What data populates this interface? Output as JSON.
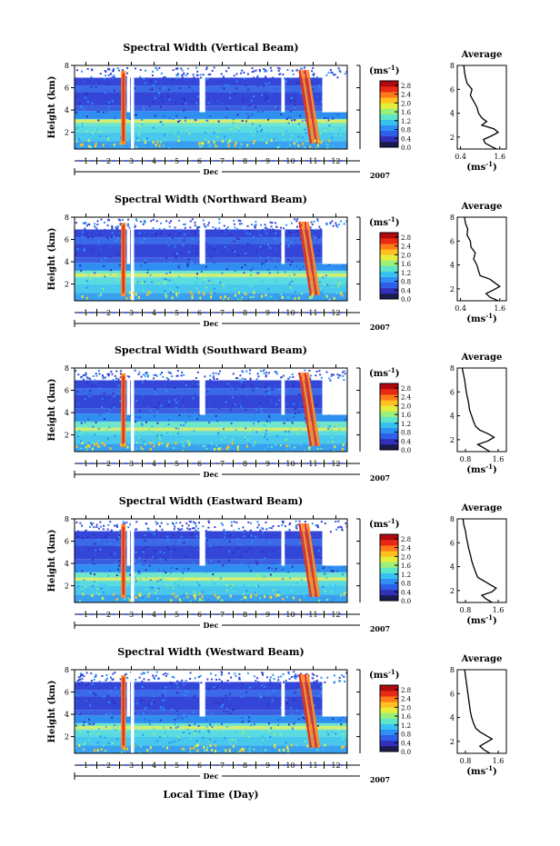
{
  "chart_data": {
    "type": "heatmap",
    "xlabel": "Local Time (Day)",
    "month_label": "Dec",
    "year_label": "2007",
    "x_tick_labels": [
      "1",
      "2",
      "3",
      "4",
      "5",
      "6",
      "7",
      "8",
      "9",
      "10",
      "11",
      "12"
    ],
    "colorbar": {
      "unit_label": "(ms",
      "unit_sup": "-1",
      "unit_close": ")",
      "tick_labels": [
        "0.0",
        "0.4",
        "0.8",
        "1.2",
        "1.6",
        "2.0",
        "2.4",
        "2.8"
      ],
      "range": [
        0,
        3.0
      ],
      "colors": [
        "#1b1b4d",
        "#3030b8",
        "#2f5ee8",
        "#2f8ff5",
        "#36c2f0",
        "#5ee6c8",
        "#9af07a",
        "#e6ee3c",
        "#ffc020",
        "#ff7a18",
        "#e82a14",
        "#b00a10"
      ]
    },
    "heatmap_dominant_colors": {
      "background_gaps": "#ffffff",
      "upper_levels": "#3346d8",
      "lower_levels": "#53d8e8",
      "enhanced_band": "#f7ef55",
      "peak_events": "#e8321e"
    },
    "panels": [
      {
        "title": "Spectral Width (Vertical Beam)",
        "ylabel": "Height (km)",
        "y_tick_labels": [
          "2",
          "4",
          "6",
          "8"
        ],
        "ylim": [
          0.5,
          8
        ],
        "xlim": [
          0.5,
          12.5
        ],
        "bright_band_height": 3.0,
        "profile": {
          "title": "Average",
          "xlabel_text": "(ms",
          "xlabel_sup": "-1",
          "xlabel_close": ")",
          "x_tick_labels": [
            "0.4",
            "1.6"
          ],
          "x_ticks": [
            0.4,
            1.6
          ],
          "xlim": [
            0.3,
            1.8
          ],
          "y_tick_labels": [
            "2",
            "4",
            "6",
            "8"
          ],
          "ylim": [
            1,
            8
          ],
          "height": [
            1.0,
            1.2,
            1.5,
            1.8,
            2.1,
            2.4,
            2.7,
            3.0,
            3.3,
            3.6,
            4.0,
            4.5,
            5.0,
            5.5,
            6.0,
            6.5,
            7.0,
            7.5,
            8.0
          ],
          "width": [
            1.5,
            1.35,
            1.15,
            1.1,
            1.35,
            1.55,
            1.42,
            1.05,
            1.2,
            1.05,
            0.95,
            0.9,
            0.8,
            0.7,
            0.75,
            0.6,
            0.55,
            0.52,
            0.5
          ]
        }
      },
      {
        "title": "Spectral Width (Northward Beam)",
        "ylabel": "Height (km)",
        "y_tick_labels": [
          "2",
          "4",
          "6",
          "8"
        ],
        "ylim": [
          0.5,
          8
        ],
        "xlim": [
          0.5,
          12.5
        ],
        "bright_band_height": 2.8,
        "profile": {
          "title": "Average",
          "xlabel_text": "(ms",
          "xlabel_sup": "-1",
          "xlabel_close": ")",
          "x_tick_labels": [
            "0.4",
            "1.6"
          ],
          "x_ticks": [
            0.4,
            1.6
          ],
          "xlim": [
            0.3,
            1.8
          ],
          "y_tick_labels": [
            "2",
            "4",
            "6",
            "8"
          ],
          "ylim": [
            1,
            8
          ],
          "height": [
            1.0,
            1.3,
            1.6,
            1.9,
            2.2,
            2.5,
            2.8,
            3.1,
            3.5,
            4.0,
            4.5,
            5.0,
            5.5,
            6.0,
            6.5,
            7.0,
            7.5,
            8.0
          ],
          "width": [
            1.55,
            1.3,
            1.18,
            1.4,
            1.6,
            1.45,
            1.3,
            1.0,
            0.95,
            0.9,
            0.8,
            0.85,
            0.72,
            0.7,
            0.6,
            0.62,
            0.55,
            0.52
          ]
        }
      },
      {
        "title": "Spectral Width (Southward Beam)",
        "ylabel": "Height (km)",
        "y_tick_labels": [
          "2",
          "4",
          "6",
          "8"
        ],
        "ylim": [
          0.5,
          8
        ],
        "xlim": [
          0.5,
          12.5
        ],
        "bright_band_height": 2.5,
        "profile": {
          "title": "Average",
          "xlabel_text": "(ms",
          "xlabel_sup": "-1",
          "xlabel_close": ")",
          "x_tick_labels": [
            "0.8",
            "1.6"
          ],
          "x_ticks": [
            0.8,
            1.6
          ],
          "xlim": [
            0.6,
            1.8
          ],
          "y_tick_labels": [
            "2",
            "4",
            "6",
            "8"
          ],
          "ylim": [
            1,
            8
          ],
          "height": [
            1.0,
            1.3,
            1.6,
            1.9,
            2.2,
            2.5,
            2.8,
            3.1,
            3.5,
            4.0,
            4.5,
            5.0,
            5.5,
            6.0,
            6.5,
            7.0,
            7.5,
            8.0
          ],
          "width": [
            1.4,
            1.25,
            1.1,
            1.35,
            1.5,
            1.35,
            1.15,
            1.05,
            1.0,
            0.95,
            0.9,
            0.88,
            0.85,
            0.82,
            0.8,
            0.78,
            0.75,
            0.72
          ]
        }
      },
      {
        "title": "Spectral Width (Eastward Beam)",
        "ylabel": "Height (km)",
        "y_tick_labels": [
          "2",
          "4",
          "6",
          "8"
        ],
        "ylim": [
          0.5,
          8
        ],
        "xlim": [
          0.5,
          12.5
        ],
        "bright_band_height": 2.6,
        "profile": {
          "title": "Average",
          "xlabel_text": "(ms",
          "xlabel_sup": "-1",
          "xlabel_close": ")",
          "x_tick_labels": [
            "0.8",
            "1.6"
          ],
          "x_ticks": [
            0.8,
            1.6
          ],
          "xlim": [
            0.6,
            1.8
          ],
          "y_tick_labels": [
            "2",
            "4",
            "6",
            "8"
          ],
          "ylim": [
            1,
            8
          ],
          "height": [
            1.0,
            1.3,
            1.6,
            1.9,
            2.2,
            2.5,
            2.8,
            3.1,
            3.5,
            4.0,
            4.5,
            5.0,
            5.5,
            6.0,
            6.5,
            7.0,
            7.5,
            8.0
          ],
          "width": [
            1.45,
            1.3,
            1.2,
            1.45,
            1.55,
            1.4,
            1.25,
            1.1,
            1.05,
            1.0,
            0.95,
            0.92,
            0.88,
            0.85,
            0.82,
            0.8,
            0.76,
            0.74
          ]
        }
      },
      {
        "title": "Spectral Width (Westward Beam)",
        "ylabel": "Height (km)",
        "y_tick_labels": [
          "2",
          "4",
          "6",
          "8"
        ],
        "ylim": [
          0.5,
          8
        ],
        "xlim": [
          0.5,
          12.5
        ],
        "bright_band_height": 2.8,
        "profile": {
          "title": "Average",
          "xlabel_text": "(ms",
          "xlabel_sup": "-1",
          "xlabel_close": ")",
          "x_tick_labels": [
            "0.8",
            "1.6"
          ],
          "x_ticks": [
            0.8,
            1.6
          ],
          "xlim": [
            0.6,
            1.8
          ],
          "y_tick_labels": [
            "2",
            "4",
            "6",
            "8"
          ],
          "ylim": [
            1,
            8
          ],
          "height": [
            1.0,
            1.3,
            1.6,
            1.9,
            2.2,
            2.5,
            2.8,
            3.1,
            3.5,
            4.0,
            4.5,
            5.0,
            5.5,
            6.0,
            6.5,
            7.0,
            7.5,
            8.0
          ],
          "width": [
            1.4,
            1.25,
            1.15,
            1.3,
            1.45,
            1.3,
            1.15,
            1.05,
            1.0,
            0.95,
            0.92,
            0.9,
            0.88,
            0.86,
            0.84,
            0.82,
            0.8,
            0.78
          ]
        }
      }
    ]
  }
}
